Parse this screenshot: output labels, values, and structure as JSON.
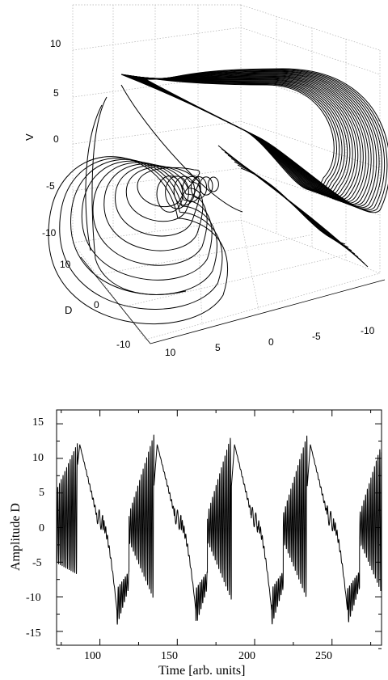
{
  "chart_data": [
    {
      "type": "line",
      "projection": "3d",
      "title": "",
      "xlabel": "",
      "ylabel": "D",
      "zlabel": "V",
      "x_ticks": [
        "-10",
        "-5",
        "0",
        "5",
        "10"
      ],
      "y_ticks": [
        "10",
        "0",
        "-10"
      ],
      "z_ticks": [
        "10",
        "5",
        "0",
        "-5",
        "-10"
      ],
      "xlim": [
        -10,
        10
      ],
      "ylim": [
        -10,
        10
      ],
      "zlim": [
        -10,
        10
      ],
      "grid": true,
      "series": [
        {
          "description_free": true,
          "values": []
        }
      ]
    },
    {
      "type": "line",
      "title": "",
      "xlabel": "Time [arb. units]",
      "ylabel": "Amplitude D",
      "x_ticks": [
        "100",
        "150",
        "200",
        "250"
      ],
      "y_ticks": [
        "15",
        "10",
        "5",
        "0",
        "-5",
        "-10",
        "-15"
      ],
      "xlim": [
        72,
        282
      ],
      "ylim": [
        -17,
        17
      ],
      "grid": false,
      "peaks": [
        {
          "t": 87,
          "v": 12
        },
        {
          "t": 137,
          "v": 12
        },
        {
          "t": 187,
          "v": 12
        },
        {
          "t": 236,
          "v": 12
        }
      ],
      "troughs": [
        {
          "t": 111,
          "v": -12
        },
        {
          "t": 162,
          "v": -12.5
        },
        {
          "t": 211,
          "v": -12
        },
        {
          "t": 260,
          "v": -12
        }
      ]
    }
  ]
}
